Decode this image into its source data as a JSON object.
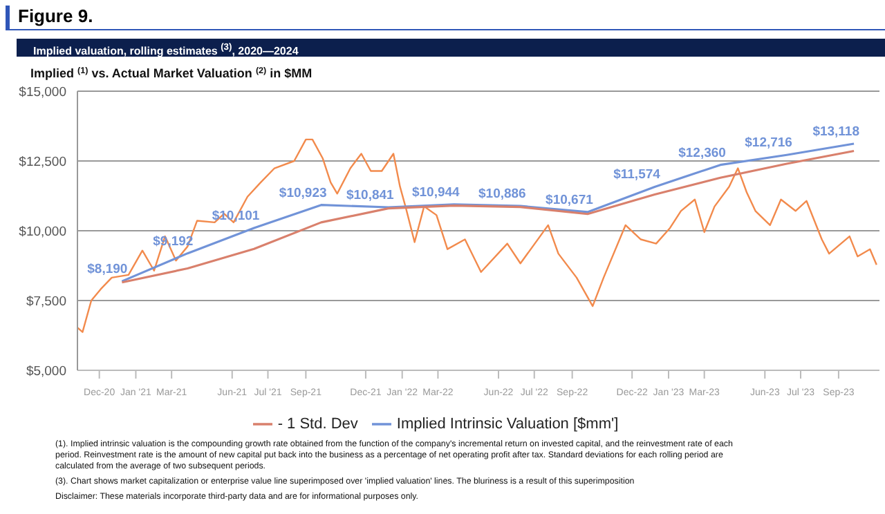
{
  "chart_data": {
    "type": "line",
    "title": "Figure 9.",
    "subtitle": "Implied valuation, rolling estimates $^{(3)}$, 2020—2024",
    "ylabel": "Implied $^{(1)}$ vs. Actual Market Valuation $^{(2)}$ in $MM",
    "xlim": [
      "2020-11-01",
      "2023-11-05"
    ],
    "xticks": [
      {
        "value": "2020-12-01",
        "label": "Dec-20"
      },
      {
        "value": "2021-01-20",
        "label": "Jan '21"
      },
      {
        "value": "2021-03-10",
        "label": "Mar-21"
      },
      {
        "value": "2021-06-01",
        "label": "Jun-21"
      },
      {
        "value": "2021-07-20",
        "label": "Jul '21"
      },
      {
        "value": "2021-09-10",
        "label": "Sep-21"
      },
      {
        "value": "2021-12-01",
        "label": "Dec-21"
      },
      {
        "value": "2022-01-20",
        "label": "Jan '22"
      },
      {
        "value": "2022-03-10",
        "label": "Mar-22"
      },
      {
        "value": "2022-06-01",
        "label": "Jun-22"
      },
      {
        "value": "2022-07-20",
        "label": "Jul '22"
      },
      {
        "value": "2022-09-10",
        "label": "Sep-22"
      },
      {
        "value": "2022-12-01",
        "label": "Dec-22"
      },
      {
        "value": "2023-01-20",
        "label": "Jan '23"
      },
      {
        "value": "2023-03-10",
        "label": "Mar-23"
      },
      {
        "value": "2023-06-01",
        "label": "Jun-23"
      },
      {
        "value": "2023-07-20",
        "label": "Jul '23"
      },
      {
        "value": "2023-09-10",
        "label": "Sep-23"
      }
    ],
    "ylim": [
      5000,
      15000
    ],
    "yticks": [
      {
        "value": 5000,
        "label": "$5,000"
      },
      {
        "value": 7500,
        "label": "$7,500"
      },
      {
        "value": 10000,
        "label": "$10,000"
      },
      {
        "value": 12500,
        "label": "$12,500"
      },
      {
        "value": 15000,
        "label": "$15,000"
      }
    ],
    "grid": "y",
    "legend": "bottom",
    "marker": "none",
    "series": [
      {
        "color": "#f28a4c",
        "x": [
          "2020-11-01",
          "2020-11-08",
          "2020-11-20",
          "2020-12-03",
          "2020-12-18",
          "2021-01-10",
          "2021-01-29",
          "2021-02-14",
          "2021-03-01",
          "2021-03-16",
          "2021-04-01",
          "2021-04-14",
          "2021-05-08",
          "2021-05-21",
          "2021-06-03",
          "2021-06-22",
          "2021-07-10",
          "2021-07-29",
          "2021-08-25",
          "2021-09-10",
          "2021-09-19",
          "2021-10-03",
          "2021-10-14",
          "2021-10-23",
          "2021-11-10",
          "2021-11-25",
          "2021-12-08",
          "2021-12-23",
          "2022-01-08",
          "2022-01-17",
          "2022-01-25",
          "2022-02-06",
          "2022-02-19",
          "2022-03-08",
          "2022-03-23",
          "2022-04-16",
          "2022-05-08",
          "2022-06-13",
          "2022-07-01",
          "2022-08-08",
          "2022-08-22",
          "2022-09-16",
          "2022-10-08",
          "2022-10-23",
          "2022-11-22",
          "2022-12-13",
          "2023-01-03",
          "2023-01-22",
          "2023-02-06",
          "2023-02-25",
          "2023-03-10",
          "2023-03-24",
          "2023-04-13",
          "2023-04-25",
          "2023-05-07",
          "2023-05-19",
          "2023-06-08",
          "2023-06-23",
          "2023-07-13",
          "2023-07-28",
          "2023-08-18",
          "2023-08-28",
          "2023-09-25",
          "2023-10-06",
          "2023-10-23",
          "2023-11-01"
        ],
        "values": [
          6530,
          6370,
          7500,
          7910,
          8320,
          8420,
          9290,
          8570,
          9800,
          8930,
          9440,
          10360,
          10300,
          10610,
          10300,
          11220,
          11730,
          12240,
          12500,
          13270,
          13270,
          12600,
          11730,
          11330,
          12240,
          12760,
          12140,
          12140,
          12760,
          11580,
          10820,
          9590,
          10870,
          10560,
          9340,
          9690,
          8520,
          9540,
          8830,
          10200,
          9180,
          8320,
          7300,
          8320,
          10200,
          9690,
          9540,
          10100,
          10710,
          11120,
          9950,
          10870,
          11580,
          12240,
          11380,
          10710,
          10200,
          11120,
          10710,
          11070,
          9690,
          9180,
          9800,
          9080,
          9340,
          8780
        ]
      },
      {
        "name": "Implied Intrinsic Valuation [$mm']",
        "color": "#7193d8",
        "x": [
          "2021-01-01",
          "2021-04-01",
          "2021-07-01",
          "2021-10-01",
          "2022-01-01",
          "2022-04-01",
          "2022-07-01",
          "2022-10-01",
          "2023-01-01",
          "2023-04-01",
          "2023-07-01",
          "2023-10-01"
        ],
        "values": [
          8190,
          9192,
          10101,
          10923,
          10841,
          10944,
          10886,
          10671,
          11574,
          12360,
          12716,
          13118
        ],
        "value_labels": [
          "$8,190",
          "$9,192",
          "$10,101",
          "$10,923",
          "$10,841",
          "$10,944",
          "$10,886",
          "$10,671",
          "$11,574",
          "$12,360",
          "$12,716",
          "$13,118"
        ]
      },
      {
        "name": "- 1 Std. Dev",
        "color": "#d9806c",
        "x": [
          "2021-01-01",
          "2021-04-01",
          "2021-07-01",
          "2021-10-01",
          "2022-01-01",
          "2022-04-01",
          "2022-07-01",
          "2022-10-01",
          "2023-01-01",
          "2023-04-01",
          "2023-07-01",
          "2023-10-01"
        ],
        "values": [
          8150,
          8650,
          9350,
          10300,
          10800,
          10900,
          10850,
          10600,
          11300,
          11900,
          12400,
          12860
        ]
      }
    ],
    "annotations": [
      "(1). Implied intrinsic valuation is the compounding growth rate obtained from the function of the company's incremental return on invested capital, and the reinvestment rate of each period. Reinvestment rate is the amount of new capital put back into the business as a percentage of net operating profit after tax. Standard deviations for each rolling period are calculated from the average of two subsequent periods.",
      "(3). Chart shows market capitalization or enterprise value line superimposed over 'implied valuation' lines. The bluriness is a result of this superimposition",
      "Disclaimer: These materials incorporate third-party data and are for informational purposes only."
    ]
  }
}
